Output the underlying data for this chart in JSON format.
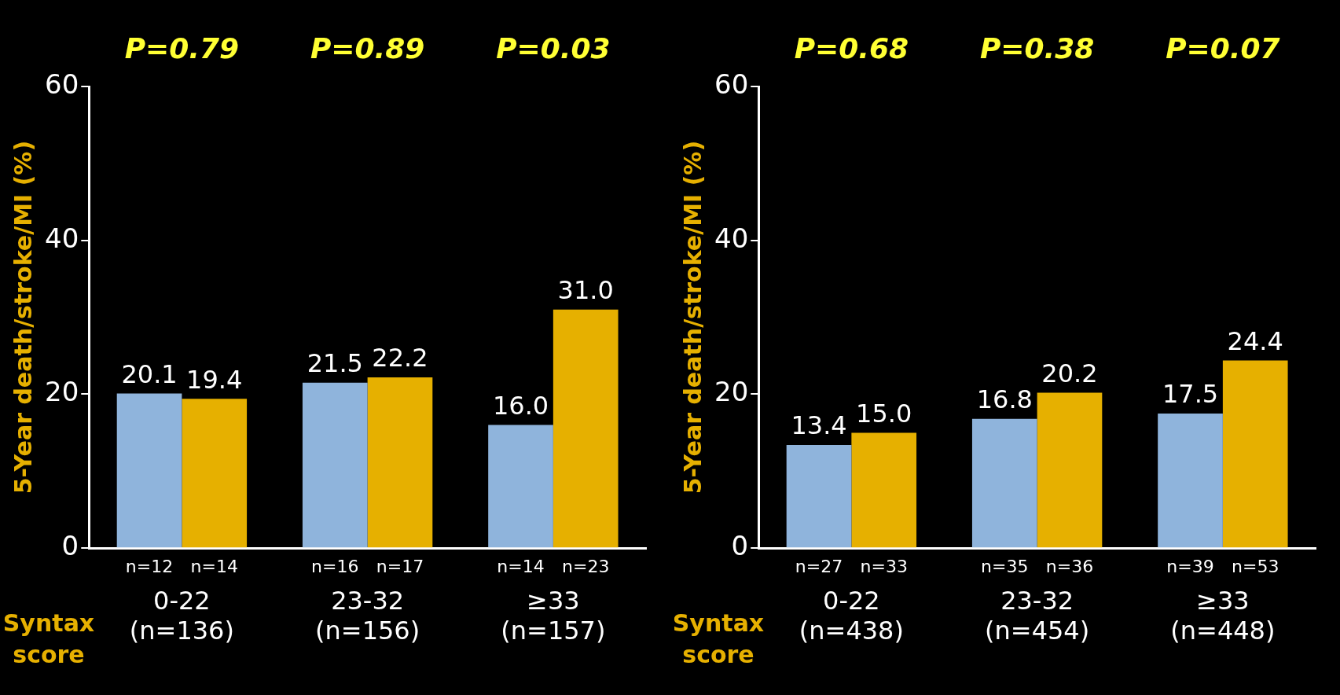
{
  "chart_data": [
    {
      "type": "bar",
      "ylabel": "5-Year death/stroke/MI (%)",
      "xlabel": "Syntax score",
      "categories": [
        "0-22 (n=136)",
        "23-32 (n=156)",
        "≥33 (n=157)"
      ],
      "series": [
        {
          "color": "#8fb4dc",
          "values": [
            20.1,
            21.5,
            16.0
          ],
          "value_labels": [
            "20.1",
            "21.5",
            "16.0"
          ]
        },
        {
          "color": "#e6b000",
          "values": [
            19.4,
            22.2,
            31.0
          ],
          "value_labels": [
            "19.4",
            "22.2",
            "31.0"
          ]
        }
      ],
      "ylim": [
        0,
        60
      ],
      "yticks": [
        0,
        20,
        40,
        60
      ],
      "grid": false,
      "annotations": [
        "P=0.79",
        "P=0.89",
        "P=0.03",
        {
          "text": "n=12",
          "x": "0-22 (n=136)",
          "y": 0
        },
        {
          "text": "n=14",
          "x": "0-22 (n=136)",
          "y": 0
        },
        {
          "text": "n=16",
          "x": "23-32 (n=156)",
          "y": 0
        },
        {
          "text": "n=17",
          "x": "23-32 (n=156)",
          "y": 0
        },
        {
          "text": "n=14",
          "x": "≥33 (n=157)",
          "y": 0
        },
        {
          "text": "n=23",
          "x": "≥33 (n=157)",
          "y": 0
        }
      ]
    },
    {
      "type": "bar",
      "ylabel": "5-Year death/stroke/MI (%)",
      "xlabel": "Syntax score",
      "categories": [
        "0-22 (n=438)",
        "23-32 (n=454)",
        "≥33 (n=448)"
      ],
      "series": [
        {
          "color": "#8fb4dc",
          "values": [
            13.4,
            16.8,
            17.5
          ],
          "value_labels": [
            "13.4",
            "16.8",
            "17.5"
          ]
        },
        {
          "color": "#e6b000",
          "values": [
            15.0,
            20.2,
            24.4
          ],
          "value_labels": [
            "15.0",
            "20.2",
            "24.4"
          ]
        }
      ],
      "ylim": [
        0,
        60
      ],
      "yticks": [
        0,
        20,
        40,
        60
      ],
      "grid": false,
      "annotations": [
        "P=0.68",
        "P=0.38",
        "P=0.07",
        {
          "text": "n=27",
          "x": "0-22 (n=438)",
          "y": 0
        },
        {
          "text": "n=33",
          "x": "0-22 (n=438)",
          "y": 0
        },
        {
          "text": "n=35",
          "x": "23-32 (n=454)",
          "y": 0
        },
        {
          "text": "n=36",
          "x": "23-32 (n=454)",
          "y": 0
        },
        {
          "text": "n=39",
          "x": "≥33 (n=448)",
          "y": 0
        },
        {
          "text": "n=53",
          "x": "≥33 (n=448)",
          "y": 0
        }
      ]
    }
  ]
}
